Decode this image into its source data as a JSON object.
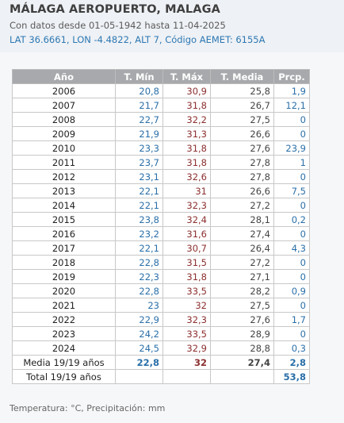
{
  "station": {
    "title": "MÁLAGA AEROPUERTO, MALAGA",
    "subtitle": "Con datos desde 01-05-1942 hasta 11-04-2025",
    "coords": "LAT 36.6661, LON -4.4822, ALT 7, Código AEMET: 6155A"
  },
  "table": {
    "headers": [
      "Año",
      "T. Mín",
      "T. Máx",
      "T. Media",
      "Prcp."
    ],
    "rows": [
      {
        "year": "2006",
        "tmin": "20,8",
        "tmax": "30,9",
        "tmed": "25,8",
        "prcp": "1,9"
      },
      {
        "year": "2007",
        "tmin": "21,7",
        "tmax": "31,8",
        "tmed": "26,7",
        "prcp": "12,1"
      },
      {
        "year": "2008",
        "tmin": "22,7",
        "tmax": "32,2",
        "tmed": "27,5",
        "prcp": "0"
      },
      {
        "year": "2009",
        "tmin": "21,9",
        "tmax": "31,3",
        "tmed": "26,6",
        "prcp": "0"
      },
      {
        "year": "2010",
        "tmin": "23,3",
        "tmax": "31,8",
        "tmed": "27,6",
        "prcp": "23,9"
      },
      {
        "year": "2011",
        "tmin": "23,7",
        "tmax": "31,8",
        "tmed": "27,8",
        "prcp": "1"
      },
      {
        "year": "2012",
        "tmin": "23,1",
        "tmax": "32,6",
        "tmed": "27,8",
        "prcp": "0"
      },
      {
        "year": "2013",
        "tmin": "22,1",
        "tmax": "31",
        "tmed": "26,6",
        "prcp": "7,5"
      },
      {
        "year": "2014",
        "tmin": "22,1",
        "tmax": "32,3",
        "tmed": "27,2",
        "prcp": "0"
      },
      {
        "year": "2015",
        "tmin": "23,8",
        "tmax": "32,4",
        "tmed": "28,1",
        "prcp": "0,2"
      },
      {
        "year": "2016",
        "tmin": "23,2",
        "tmax": "31,6",
        "tmed": "27,4",
        "prcp": "0"
      },
      {
        "year": "2017",
        "tmin": "22,1",
        "tmax": "30,7",
        "tmed": "26,4",
        "prcp": "4,3"
      },
      {
        "year": "2018",
        "tmin": "22,8",
        "tmax": "31,5",
        "tmed": "27,2",
        "prcp": "0"
      },
      {
        "year": "2019",
        "tmin": "22,3",
        "tmax": "31,8",
        "tmed": "27,1",
        "prcp": "0"
      },
      {
        "year": "2020",
        "tmin": "22,8",
        "tmax": "33,5",
        "tmed": "28,2",
        "prcp": "0,9"
      },
      {
        "year": "2021",
        "tmin": "23",
        "tmax": "32",
        "tmed": "27,5",
        "prcp": "0"
      },
      {
        "year": "2022",
        "tmin": "22,9",
        "tmax": "32,3",
        "tmed": "27,6",
        "prcp": "1,7"
      },
      {
        "year": "2023",
        "tmin": "24,2",
        "tmax": "33,5",
        "tmed": "28,9",
        "prcp": "0"
      },
      {
        "year": "2024",
        "tmin": "24,5",
        "tmax": "32,9",
        "tmed": "28,8",
        "prcp": "0,3"
      }
    ],
    "average": {
      "label": "Media 19/19 años",
      "tmin": "22,8",
      "tmax": "32",
      "tmed": "27,4",
      "prcp": "2,8"
    },
    "total": {
      "label": "Total 19/19 años",
      "tmin": "",
      "tmax": "",
      "tmed": "",
      "prcp": "53,8"
    }
  },
  "footer": "Temperatura: °C, Precipitación: mm",
  "colors": {
    "header_bg": "#a7a9ac",
    "tmin": "#2a6fa8",
    "tmax": "#8c2f2f",
    "prcp": "#2a6fa8",
    "coords": "#2d78b3"
  }
}
